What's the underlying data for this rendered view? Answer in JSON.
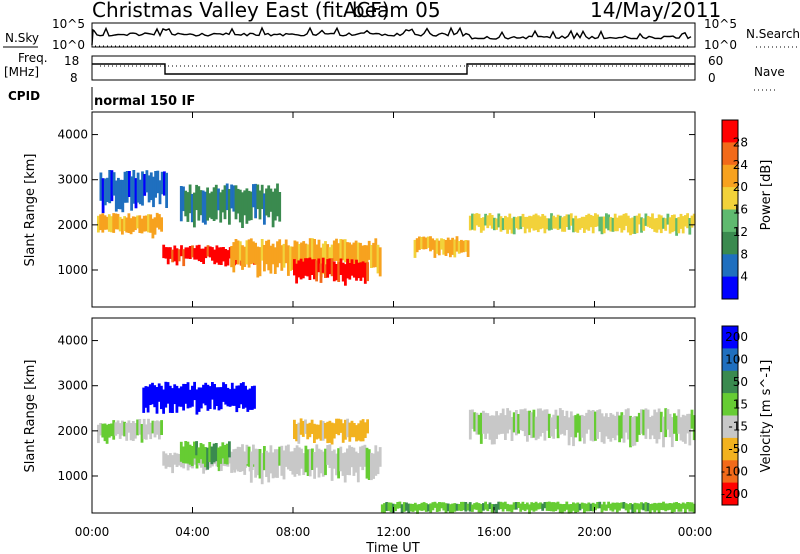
{
  "header": {
    "station": "Christmas Valley East (fitACF)",
    "beam": "beam 05",
    "date": "14/May/2011"
  },
  "top_panels": {
    "nsky_label": "N.Sky",
    "nsky_ticks": [
      "10^5",
      "10^0"
    ],
    "nsearch_label": "N.Search",
    "nsearch_ticks": [
      "10^5",
      "10^0"
    ],
    "freq_label_line1": "Freq.",
    "freq_label_line2": "[MHz]",
    "freq_ticks": [
      "18",
      "8"
    ],
    "nave_label": "Nave",
    "nave_ticks": [
      "60",
      "0"
    ],
    "cpid_label": "CPID",
    "cpid_value": "normal 150 IF"
  },
  "chart_data": [
    {
      "type": "heatmap",
      "quantity": "Power",
      "ylabel": "Slant Range [km]",
      "yticks": [
        "1000",
        "2000",
        "3000",
        "4000"
      ],
      "ylim": [
        180,
        4500
      ],
      "xlim_hours": [
        0,
        24
      ],
      "colorbar_label": "Power [dB]",
      "colorbar_ticks": [
        "4",
        "8",
        "12",
        "16",
        "20",
        "24",
        "28"
      ],
      "colors": [
        "#0000ff",
        "#1f6fbf",
        "#3a8a4f",
        "#5fba6f",
        "#f2d23a",
        "#f7a21f",
        "#f26a1a",
        "#ff0000"
      ],
      "bands": [
        {
          "x0": 0.2,
          "x1": 2.8,
          "y0": 1750,
          "y1": 2200,
          "level": 5
        },
        {
          "x0": 2.8,
          "x1": 6.5,
          "y0": 1100,
          "y1": 1500,
          "level": 7
        },
        {
          "x0": 5.5,
          "x1": 11.5,
          "y0": 900,
          "y1": 1600,
          "level": 5
        },
        {
          "x0": 8.0,
          "x1": 11.0,
          "y0": 700,
          "y1": 1200,
          "level": 7
        },
        {
          "x0": 12.8,
          "x1": 15.0,
          "y0": 1300,
          "y1": 1700,
          "level": 5
        },
        {
          "x0": 15.0,
          "x1": 24.0,
          "y0": 1800,
          "y1": 2200,
          "level": 4
        },
        {
          "x0": 3.5,
          "x1": 7.5,
          "y0": 2000,
          "y1": 2800,
          "level": 2
        },
        {
          "x0": 0.3,
          "x1": 3.0,
          "y0": 2300,
          "y1": 3100,
          "level": 1
        }
      ]
    },
    {
      "type": "heatmap",
      "quantity": "Velocity",
      "ylabel": "Slant Range [km]",
      "yticks": [
        "1000",
        "2000",
        "3000",
        "4000"
      ],
      "ylim": [
        180,
        4500
      ],
      "xlim_hours": [
        0,
        24
      ],
      "xticks": [
        "00:00",
        "04:00",
        "08:00",
        "12:00",
        "16:00",
        "20:00",
        "00:00"
      ],
      "xlabel": "Time UT",
      "colorbar_label": "Velocity [m s^-1]",
      "colorbar_ticks": [
        "200",
        "100",
        "50",
        "15",
        "-15",
        "-50",
        "-100",
        "-200"
      ],
      "colors": [
        "#0000ff",
        "#1f6fbf",
        "#3a8a4f",
        "#66cc33",
        "#c8c8c8",
        "#f2b21f",
        "#f26a1a",
        "#ff0000"
      ],
      "bands": [
        {
          "x0": 0.2,
          "x1": 2.8,
          "y0": 1750,
          "y1": 2200,
          "level": 4
        },
        {
          "x0": 2.8,
          "x1": 6.5,
          "y0": 1100,
          "y1": 1500,
          "level": 4
        },
        {
          "x0": 5.5,
          "x1": 11.5,
          "y0": 900,
          "y1": 1600,
          "level": 4
        },
        {
          "x0": 8.0,
          "x1": 11.0,
          "y0": 1700,
          "y1": 2200,
          "level": 5
        },
        {
          "x0": 15.0,
          "x1": 24.0,
          "y0": 1700,
          "y1": 2400,
          "level": 4
        },
        {
          "x0": 2.0,
          "x1": 6.5,
          "y0": 2400,
          "y1": 3000,
          "level": 0
        },
        {
          "x0": 3.5,
          "x1": 5.5,
          "y0": 1200,
          "y1": 1700,
          "level": 3
        },
        {
          "x0": 11.5,
          "x1": 24.0,
          "y0": 180,
          "y1": 400,
          "level": 3
        }
      ]
    }
  ]
}
